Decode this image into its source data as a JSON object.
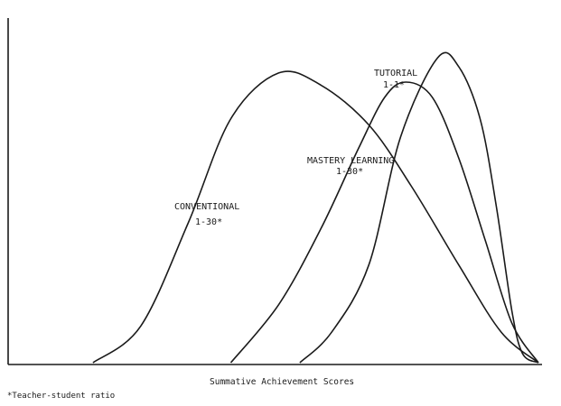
{
  "chart_data": {
    "type": "line",
    "title": "",
    "xlabel": "Summative Achievement Scores",
    "ylabel": "",
    "footnote": "*Teacher-student ratio",
    "grid": false,
    "xlim": [
      0,
      100
    ],
    "ylim": [
      0,
      100
    ],
    "series": [
      {
        "name": "CONVENTIONAL",
        "ratio": "1-30*",
        "x": [
          16,
          25,
          34,
          42,
          51,
          59,
          68,
          76,
          85,
          93,
          100
        ],
        "y": [
          0,
          12,
          46,
          80,
          95,
          91,
          78,
          58,
          32,
          10,
          0
        ]
      },
      {
        "name": "MASTERY LEARNING",
        "ratio": "1-30*",
        "x": [
          42,
          51,
          59,
          66,
          71,
          75,
          80,
          85,
          90,
          95,
          100
        ],
        "y": [
          0,
          19,
          44,
          70,
          87,
          92,
          87,
          67,
          40,
          13,
          0
        ]
      },
      {
        "name": "TUTORIAL",
        "ratio": "1-1*",
        "x": [
          55,
          61,
          68,
          74,
          81,
          85,
          89,
          92,
          95,
          97,
          100
        ],
        "y": [
          0,
          10,
          32,
          74,
          100,
          97,
          80,
          52,
          17,
          3,
          0
        ]
      }
    ]
  }
}
